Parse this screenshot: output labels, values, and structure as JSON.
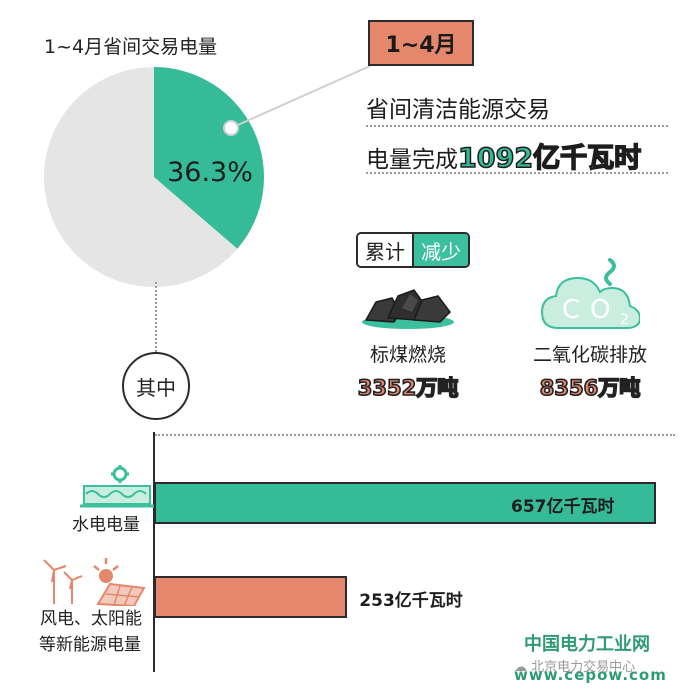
{
  "chart_data": {
    "type": "pie",
    "title": "1~4月省间交易电量",
    "slices": [
      {
        "label": "36.3%",
        "value": 36.3,
        "color": "#35bb98"
      },
      {
        "label": "",
        "value": 63.7,
        "color": "#e5e5e5"
      }
    ]
  },
  "bar_chart": {
    "type": "bar",
    "orientation": "horizontal",
    "categories": [
      "水电电量",
      "风电、太阳能等新能源电量"
    ],
    "values": [
      657,
      253
    ],
    "value_labels": [
      "657亿千瓦时",
      "253亿千瓦时"
    ],
    "colors": [
      "#35bb98",
      "#e4876d"
    ],
    "xlim": [
      0,
      657
    ]
  },
  "period_badge": "1~4月",
  "headline": {
    "line1": "省间清洁能源交易",
    "line2_prefix": "电量完成",
    "line2_highlight": "1092亿千瓦时"
  },
  "cumulative": {
    "label_a": "累计",
    "label_b": "减少"
  },
  "items": [
    {
      "label": "标煤燃烧",
      "value": "3352万吨",
      "icon": "coal-icon"
    },
    {
      "label": "二氧化碳排放",
      "value": "8356万吨",
      "icon": "co2-cloud-icon"
    }
  ],
  "co2_text": {
    "c": "C",
    "o": "O",
    "sub": "2"
  },
  "qizhong": "其中",
  "cat_labels": {
    "hydro": "水电电量",
    "renew_line1": "风电、太阳能",
    "renew_line2": "等新能源电量"
  },
  "brand": "中国电力工业网",
  "wechat": "北京电力交易中心",
  "site": "www.cepow.com",
  "colors": {
    "green": "#35bb98",
    "coral": "#e4876d",
    "gray": "#e5e5e5",
    "outline": "#2b2b2b"
  }
}
